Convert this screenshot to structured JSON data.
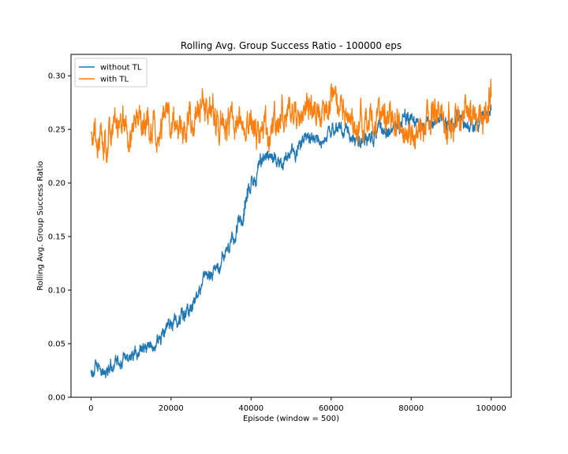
{
  "chart_data": {
    "type": "line",
    "title": "Rolling Avg. Group Success Ratio - 100000 eps",
    "xlabel": "Episode (window = 500)",
    "ylabel": "Rolling Avg. Group Success Ratio",
    "xlim": [
      -5000,
      105000
    ],
    "ylim": [
      0.0,
      0.32
    ],
    "xticks": [
      0,
      20000,
      40000,
      60000,
      80000,
      100000
    ],
    "yticks": [
      0.0,
      0.05,
      0.1,
      0.15,
      0.2,
      0.25,
      0.3
    ],
    "xtick_labels": [
      "0",
      "20000",
      "40000",
      "60000",
      "80000",
      "100000"
    ],
    "ytick_labels": [
      "0.00",
      "0.05",
      "0.10",
      "0.15",
      "0.20",
      "0.25",
      "0.30"
    ],
    "grid": false,
    "legend_position": "top-left",
    "series": [
      {
        "name": "without TL",
        "color": "#1f77b4",
        "x": [
          0,
          2000,
          4000,
          6000,
          8000,
          10000,
          12000,
          14000,
          16000,
          18000,
          20000,
          22000,
          24000,
          26000,
          28000,
          30000,
          32000,
          34000,
          36000,
          38000,
          39000,
          40000,
          42000,
          44000,
          46000,
          48000,
          50000,
          52000,
          54000,
          56000,
          58000,
          60000,
          62000,
          64000,
          66000,
          68000,
          70000,
          72000,
          74000,
          76000,
          78000,
          80000,
          82000,
          84000,
          86000,
          88000,
          90000,
          92000,
          94000,
          96000,
          98000,
          100000
        ],
        "y": [
          0.027,
          0.026,
          0.028,
          0.03,
          0.035,
          0.038,
          0.04,
          0.045,
          0.05,
          0.06,
          0.068,
          0.075,
          0.08,
          0.092,
          0.105,
          0.115,
          0.122,
          0.135,
          0.15,
          0.165,
          0.195,
          0.195,
          0.215,
          0.225,
          0.222,
          0.218,
          0.225,
          0.235,
          0.24,
          0.245,
          0.238,
          0.245,
          0.25,
          0.245,
          0.242,
          0.24,
          0.24,
          0.25,
          0.248,
          0.252,
          0.258,
          0.262,
          0.255,
          0.252,
          0.255,
          0.26,
          0.255,
          0.262,
          0.25,
          0.258,
          0.262,
          0.268
        ]
      },
      {
        "name": "with TL",
        "color": "#ff7f0e",
        "x": [
          0,
          2000,
          4000,
          6000,
          8000,
          10000,
          12000,
          14000,
          16000,
          18000,
          20000,
          22000,
          24000,
          26000,
          28000,
          30000,
          32000,
          34000,
          36000,
          38000,
          40000,
          42000,
          44000,
          46000,
          48000,
          50000,
          52000,
          54000,
          56000,
          58000,
          60000,
          62000,
          64000,
          66000,
          68000,
          70000,
          72000,
          74000,
          76000,
          78000,
          80000,
          82000,
          84000,
          86000,
          88000,
          90000,
          92000,
          94000,
          96000,
          98000,
          100000
        ],
        "y": [
          0.255,
          0.24,
          0.235,
          0.255,
          0.25,
          0.24,
          0.262,
          0.255,
          0.245,
          0.25,
          0.26,
          0.245,
          0.255,
          0.265,
          0.275,
          0.268,
          0.262,
          0.258,
          0.262,
          0.255,
          0.265,
          0.25,
          0.245,
          0.255,
          0.265,
          0.262,
          0.27,
          0.272,
          0.265,
          0.262,
          0.268,
          0.272,
          0.262,
          0.255,
          0.262,
          0.258,
          0.258,
          0.262,
          0.265,
          0.25,
          0.24,
          0.255,
          0.262,
          0.268,
          0.262,
          0.255,
          0.265,
          0.258,
          0.255,
          0.262,
          0.28
        ]
      }
    ]
  }
}
